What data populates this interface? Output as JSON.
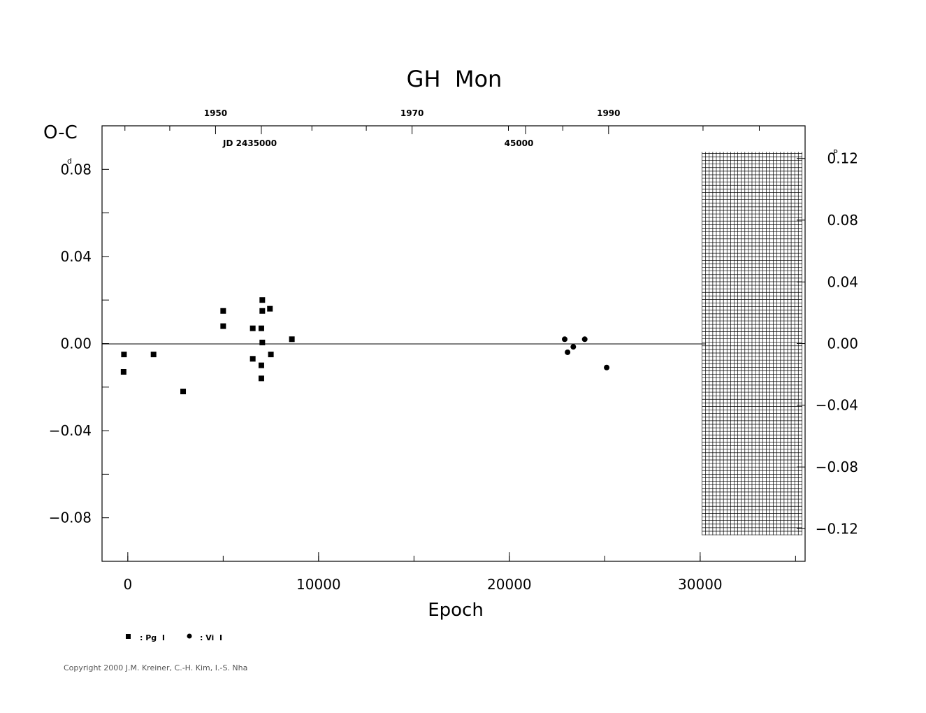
{
  "chart_data": {
    "type": "scatter",
    "title": "GH  Mon",
    "xlabel": "Epoch",
    "ylabel": "O-C",
    "y_unit_left": "d",
    "y_unit_right": "P",
    "xlim": [
      -1350,
      35500
    ],
    "ylim": [
      -0.1,
      0.1
    ],
    "x_ticks": [
      {
        "value": 0,
        "label": "0"
      },
      {
        "value": 10000,
        "label": "10000"
      },
      {
        "value": 20000,
        "label": "20000"
      },
      {
        "value": 30000,
        "label": "30000"
      }
    ],
    "y_ticks_left": [
      {
        "value": 0.08,
        "label": "0.08"
      },
      {
        "value": 0.04,
        "label": "0.04"
      },
      {
        "value": 0.0,
        "label": "0.00"
      },
      {
        "value": -0.04,
        "label": "−0.04"
      },
      {
        "value": -0.08,
        "label": "−0.08"
      }
    ],
    "y_ticks_right": [
      {
        "value": 0.085,
        "label": "0.12"
      },
      {
        "value": 0.0567,
        "label": "0.08"
      },
      {
        "value": 0.0283,
        "label": "0.04"
      },
      {
        "value": 0.0,
        "label": "0.00"
      },
      {
        "value": -0.0283,
        "label": "−0.04"
      },
      {
        "value": -0.0567,
        "label": "−0.08"
      },
      {
        "value": -0.085,
        "label": "−0.12"
      }
    ],
    "top_year_ticks": [
      {
        "epoch": 4600,
        "label": "1950"
      },
      {
        "epoch": 14900,
        "label": "1970"
      },
      {
        "epoch": 25200,
        "label": "1990"
      }
    ],
    "top_jd_labels": [
      {
        "epoch": 6400,
        "label": "JD  2435000"
      },
      {
        "epoch": 20500,
        "label": "45000"
      }
    ],
    "zero_line": true,
    "future_hatch_from_epoch": 30100,
    "series": [
      {
        "name": ": Pg  I",
        "marker": "square",
        "points": [
          [
            -200,
            -0.005
          ],
          [
            -220,
            -0.013
          ],
          [
            1350,
            -0.005
          ],
          [
            2900,
            -0.022
          ],
          [
            5000,
            0.015
          ],
          [
            5000,
            0.008
          ],
          [
            6550,
            0.007
          ],
          [
            6550,
            -0.007
          ],
          [
            7050,
            0.02
          ],
          [
            7050,
            0.015
          ],
          [
            7000,
            0.007
          ],
          [
            7050,
            0.0005
          ],
          [
            7000,
            -0.01
          ],
          [
            7000,
            -0.016
          ],
          [
            7450,
            0.016
          ],
          [
            7500,
            -0.005
          ],
          [
            8600,
            0.002
          ]
        ]
      },
      {
        "name": ": Vi  I",
        "marker": "circle",
        "points": [
          [
            22900,
            0.002
          ],
          [
            23050,
            -0.004
          ],
          [
            23350,
            -0.0015
          ],
          [
            23950,
            0.002
          ],
          [
            25100,
            -0.011
          ]
        ]
      }
    ]
  },
  "copyright": "Copyright 2000 J.M. Kreiner, C.-H. Kim, I.-S. Nha"
}
